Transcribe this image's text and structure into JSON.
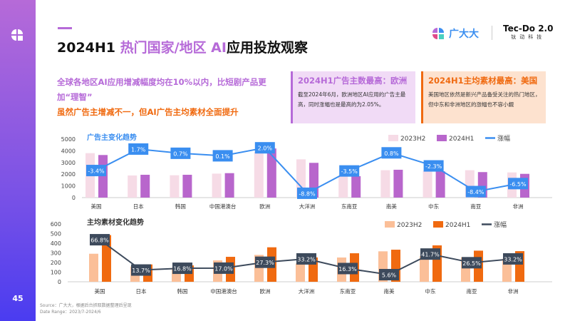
{
  "page": {
    "number": "45",
    "title_prefix": "2024H1 ",
    "title_highlight": "热门国家/地区 AI",
    "title_suffix": "应用投放观察"
  },
  "logo": {
    "brand": "广大大",
    "tecdo": "Tec-Do 2.0",
    "tecdo_sub": "钛动科技"
  },
  "lead": {
    "line1": "全球各地区AI应用增减幅度均在10%以内，比短剧产品更加“理智”",
    "line2": "虽然广告主增减不一，但AI广告主均素材全面提升"
  },
  "cards": [
    {
      "title": "2024H1广告主数最高：欧洲",
      "text": "截至2024年6月，欧洲地区AI应用的广告主最高，同时涨幅也是最高的为2.05%。"
    },
    {
      "title": "2024H1主均素材最高：美国",
      "text": "美国地区依然是新兴产品备受关注的热门地区，但中东和非洲地区的涨幅也不容小觑"
    }
  ],
  "source": {
    "line1": "Source：广大大，根据后台抓取数据整理后呈现",
    "line2": "Date Range：2023/7-2024/6"
  },
  "colors": {
    "purple": "#b66ad8",
    "orange": "#f06a10",
    "blue_line": "#3a8ef0",
    "dark_line": "#3d4a5c"
  },
  "chart_data": [
    {
      "type": "bar",
      "title": "广告主变化趋势",
      "categories": [
        "美国",
        "日本",
        "韩国",
        "中国港澳台",
        "欧洲",
        "大洋洲",
        "东南亚",
        "南美",
        "中东",
        "南亚",
        "非洲"
      ],
      "ylim": [
        0,
        5000
      ],
      "yticks": [
        0,
        1000,
        2000,
        3000,
        4000,
        5000
      ],
      "series": [
        {
          "name": "2023H2",
          "kind": "bar",
          "color": "#f6dbe6",
          "values": [
            3800,
            1890,
            1910,
            2050,
            3900,
            3270,
            1900,
            2340,
            2300,
            2340,
            2150
          ]
        },
        {
          "name": "2024H1",
          "kind": "bar",
          "color": "#b866cc",
          "values": [
            3640,
            1950,
            1950,
            2090,
            4200,
            2970,
            1830,
            2380,
            2250,
            2180,
            2030
          ]
        },
        {
          "name": "涨幅",
          "kind": "line",
          "color": "#3a8ef0",
          "values": [
            -3.4,
            1.7,
            0.7,
            0.1,
            2.0,
            -8.8,
            -3.5,
            0.8,
            -2.3,
            -8.4,
            -6.5
          ],
          "labels": [
            "-3.4%",
            "1.7%",
            "0.7%",
            "0.1%",
            "2.0%",
            "-8.8%",
            "-3.5%",
            "0.8%",
            "-2.3%",
            "-8.4%",
            "-6.5%"
          ]
        }
      ],
      "legend": "top-right"
    },
    {
      "type": "bar",
      "title": "主均素材变化趋势",
      "categories": [
        "美国",
        "日本",
        "韩国",
        "中国港澳台",
        "欧洲",
        "大洋洲",
        "东南亚",
        "南美",
        "中东",
        "南亚",
        "非洲"
      ],
      "ylim": [
        0,
        600
      ],
      "yticks": [
        0,
        100,
        200,
        300,
        400,
        500,
        600
      ],
      "series": [
        {
          "name": "2023H2",
          "kind": "bar",
          "color": "#fbbf98",
          "values": [
            291,
            158,
            146,
            222,
            279,
            190,
            252,
            316,
            267,
            255,
            239
          ]
        },
        {
          "name": "2024H1",
          "kind": "bar",
          "color": "#f06a10",
          "values": [
            485,
            180,
            170,
            259,
            358,
            253,
            296,
            333,
            378,
            323,
            318
          ]
        },
        {
          "name": "涨幅",
          "kind": "line",
          "color": "#3d4a5c",
          "values": [
            66.8,
            13.7,
            16.8,
            17.0,
            27.3,
            33.2,
            16.3,
            5.6,
            41.7,
            26.5,
            33.2
          ],
          "labels": [
            "66.8%",
            "13.7%",
            "16.8%",
            "17.0%",
            "27.3%",
            "33.2%",
            "16.3%",
            "5.6%",
            "41.7%",
            "26.5%",
            "33.2%"
          ]
        }
      ],
      "legend": "top-right"
    }
  ]
}
